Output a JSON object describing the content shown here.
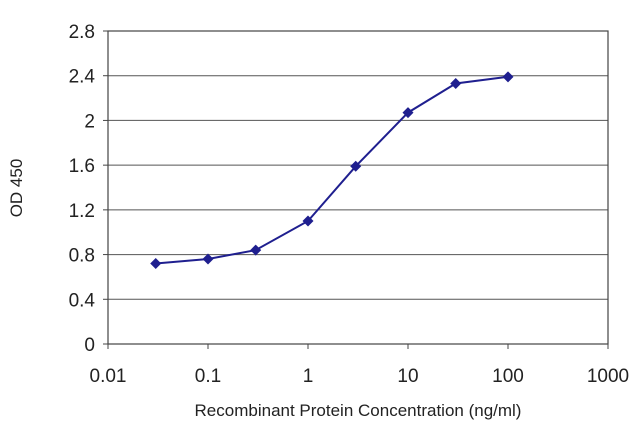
{
  "chart_data": {
    "type": "line",
    "title": "",
    "xlabel": "Recombinant Protein Concentration (ng/ml)",
    "ylabel": "OD 450",
    "x_scale": "log",
    "xlim": [
      0.01,
      1000
    ],
    "ylim": [
      0,
      2.8
    ],
    "x_ticks": [
      "0.01",
      "0.1",
      "1",
      "10",
      "100",
      "1000"
    ],
    "y_ticks": [
      "0",
      "0.4",
      "0.8",
      "1.2",
      "1.6",
      "2",
      "2.4",
      "2.8"
    ],
    "grid": "horizontal",
    "series": [
      {
        "color": "#1f1f8f",
        "marker": "diamond",
        "x": [
          0.03,
          0.1,
          0.3,
          1,
          3,
          10,
          30,
          100
        ],
        "y": [
          0.72,
          0.76,
          0.84,
          1.1,
          1.59,
          2.07,
          2.33,
          2.39
        ]
      }
    ]
  }
}
